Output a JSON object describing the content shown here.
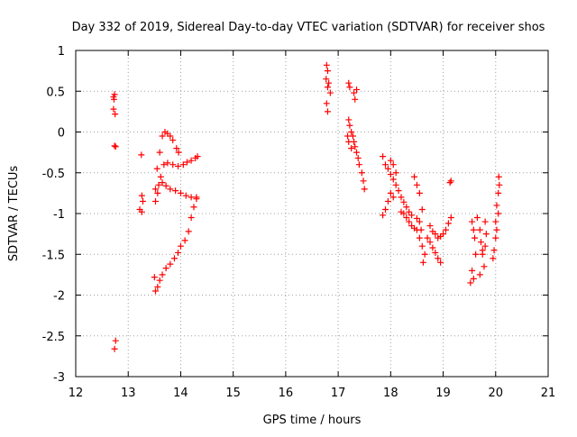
{
  "chart_data": {
    "type": "scatter",
    "title": "Day 332 of 2019, Sidereal Day-to-day VTEC variation (SDTVAR) for receiver shos",
    "xlabel": "GPS time / hours",
    "ylabel": "SDTVAR / TECUs",
    "xlim": [
      12,
      21
    ],
    "ylim": [
      -3,
      1
    ],
    "x_ticks": [
      "12",
      "13",
      "14",
      "15",
      "16",
      "17",
      "18",
      "19",
      "20",
      "21"
    ],
    "y_ticks": [
      "1",
      "0.5",
      "0",
      "-0.5",
      "-1",
      "-1.5",
      "-2",
      "-2.5",
      "-3"
    ],
    "grid": true,
    "legend": "none",
    "colors": {
      "series": "#ff0000",
      "grid": "#a0a0a0",
      "axis": "#000000"
    },
    "series": [
      {
        "name": "SDTVAR",
        "marker": "plus",
        "points": [
          [
            12.72,
            0.43
          ],
          [
            12.74,
            0.46
          ],
          [
            12.73,
            0.4
          ],
          [
            12.72,
            0.28
          ],
          [
            12.75,
            0.22
          ],
          [
            12.74,
            -0.17
          ],
          [
            12.76,
            -0.18
          ],
          [
            12.76,
            -2.56
          ],
          [
            12.74,
            -2.66
          ],
          [
            13.25,
            -0.28
          ],
          [
            13.26,
            -0.78
          ],
          [
            13.28,
            -0.85
          ],
          [
            13.22,
            -0.95
          ],
          [
            13.26,
            -0.98
          ],
          [
            13.55,
            -0.45
          ],
          [
            13.6,
            -0.25
          ],
          [
            13.65,
            -0.05
          ],
          [
            13.7,
            0.0
          ],
          [
            13.75,
            -0.02
          ],
          [
            13.8,
            -0.05
          ],
          [
            13.85,
            -0.1
          ],
          [
            13.92,
            -0.2
          ],
          [
            13.96,
            -0.25
          ],
          [
            13.52,
            -0.85
          ],
          [
            13.56,
            -0.75
          ],
          [
            13.62,
            -0.55
          ],
          [
            13.68,
            -0.4
          ],
          [
            13.75,
            -0.38
          ],
          [
            13.85,
            -0.4
          ],
          [
            13.95,
            -0.42
          ],
          [
            14.05,
            -0.4
          ],
          [
            14.12,
            -0.37
          ],
          [
            14.2,
            -0.35
          ],
          [
            14.28,
            -0.32
          ],
          [
            14.32,
            -0.3
          ],
          [
            13.52,
            -0.7
          ],
          [
            13.58,
            -0.65
          ],
          [
            13.65,
            -0.62
          ],
          [
            13.72,
            -0.66
          ],
          [
            13.8,
            -0.7
          ],
          [
            13.9,
            -0.72
          ],
          [
            14.0,
            -0.75
          ],
          [
            14.1,
            -0.78
          ],
          [
            14.2,
            -0.8
          ],
          [
            14.3,
            -0.8
          ],
          [
            13.52,
            -1.95
          ],
          [
            13.56,
            -1.9
          ],
          [
            13.6,
            -1.82
          ],
          [
            13.65,
            -1.75
          ],
          [
            13.72,
            -1.67
          ],
          [
            13.8,
            -1.62
          ],
          [
            13.88,
            -1.55
          ],
          [
            13.95,
            -1.48
          ],
          [
            14.0,
            -1.4
          ],
          [
            14.08,
            -1.33
          ],
          [
            14.15,
            -1.22
          ],
          [
            14.2,
            -1.05
          ],
          [
            14.25,
            -0.92
          ],
          [
            14.3,
            -0.82
          ],
          [
            13.5,
            -1.78
          ],
          [
            16.78,
            0.82
          ],
          [
            16.8,
            0.75
          ],
          [
            16.77,
            0.65
          ],
          [
            16.82,
            0.6
          ],
          [
            16.8,
            0.55
          ],
          [
            16.85,
            0.48
          ],
          [
            16.78,
            0.35
          ],
          [
            16.8,
            0.25
          ],
          [
            17.2,
            0.6
          ],
          [
            17.22,
            0.55
          ],
          [
            17.3,
            0.48
          ],
          [
            17.35,
            0.52
          ],
          [
            17.32,
            0.4
          ],
          [
            17.2,
            0.15
          ],
          [
            17.22,
            0.08
          ],
          [
            17.25,
            0.0
          ],
          [
            17.28,
            -0.05
          ],
          [
            17.3,
            -0.12
          ],
          [
            17.32,
            -0.18
          ],
          [
            17.35,
            -0.25
          ],
          [
            17.38,
            -0.32
          ],
          [
            17.4,
            -0.4
          ],
          [
            17.45,
            -0.5
          ],
          [
            17.48,
            -0.6
          ],
          [
            17.5,
            -0.7
          ],
          [
            17.18,
            -0.05
          ],
          [
            17.2,
            -0.12
          ],
          [
            17.25,
            -0.2
          ],
          [
            17.85,
            -0.3
          ],
          [
            17.9,
            -0.4
          ],
          [
            17.95,
            -0.45
          ],
          [
            18.0,
            -0.52
          ],
          [
            18.05,
            -0.58
          ],
          [
            18.1,
            -0.65
          ],
          [
            18.15,
            -0.72
          ],
          [
            18.2,
            -0.8
          ],
          [
            18.25,
            -0.86
          ],
          [
            18.3,
            -0.92
          ],
          [
            18.35,
            -0.98
          ],
          [
            18.4,
            -1.02
          ],
          [
            18.5,
            -1.06
          ],
          [
            18.0,
            -0.35
          ],
          [
            18.05,
            -0.4
          ],
          [
            18.1,
            -0.5
          ],
          [
            17.85,
            -1.02
          ],
          [
            17.9,
            -0.95
          ],
          [
            17.95,
            -0.85
          ],
          [
            18.0,
            -0.75
          ],
          [
            18.05,
            -0.8
          ],
          [
            18.2,
            -0.98
          ],
          [
            18.25,
            -1.0
          ],
          [
            18.3,
            -1.05
          ],
          [
            18.35,
            -1.1
          ],
          [
            18.4,
            -1.15
          ],
          [
            18.45,
            -1.18
          ],
          [
            18.45,
            -0.55
          ],
          [
            18.5,
            -0.65
          ],
          [
            18.55,
            -0.75
          ],
          [
            18.6,
            -0.95
          ],
          [
            18.55,
            -1.1
          ],
          [
            18.58,
            -1.2
          ],
          [
            18.5,
            -1.2
          ],
          [
            18.55,
            -1.3
          ],
          [
            18.6,
            -1.4
          ],
          [
            18.65,
            -1.5
          ],
          [
            18.62,
            -1.6
          ],
          [
            18.7,
            -1.3
          ],
          [
            18.75,
            -1.35
          ],
          [
            18.8,
            -1.42
          ],
          [
            18.85,
            -1.48
          ],
          [
            18.9,
            -1.55
          ],
          [
            18.95,
            -1.6
          ],
          [
            18.75,
            -1.15
          ],
          [
            18.8,
            -1.22
          ],
          [
            18.85,
            -1.25
          ],
          [
            18.9,
            -1.3
          ],
          [
            18.95,
            -1.28
          ],
          [
            19.0,
            -1.25
          ],
          [
            19.05,
            -1.2
          ],
          [
            19.1,
            -1.12
          ],
          [
            19.15,
            -1.05
          ],
          [
            19.13,
            -0.62
          ],
          [
            19.15,
            -0.6
          ],
          [
            19.55,
            -1.1
          ],
          [
            19.58,
            -1.2
          ],
          [
            19.6,
            -1.3
          ],
          [
            19.62,
            -1.5
          ],
          [
            19.55,
            -1.7
          ],
          [
            19.58,
            -1.8
          ],
          [
            19.52,
            -1.85
          ],
          [
            19.65,
            -1.05
          ],
          [
            19.7,
            -1.2
          ],
          [
            19.72,
            -1.35
          ],
          [
            19.75,
            -1.5
          ],
          [
            19.78,
            -1.65
          ],
          [
            19.7,
            -1.75
          ],
          [
            19.8,
            -1.1
          ],
          [
            19.82,
            -1.25
          ],
          [
            19.8,
            -1.4
          ],
          [
            19.75,
            -1.45
          ],
          [
            19.95,
            -1.55
          ],
          [
            19.97,
            -1.45
          ],
          [
            20.0,
            -1.3
          ],
          [
            20.02,
            -1.2
          ],
          [
            20.0,
            -1.1
          ],
          [
            20.05,
            -1.0
          ],
          [
            20.02,
            -0.9
          ],
          [
            20.05,
            -0.75
          ],
          [
            20.07,
            -0.65
          ],
          [
            20.06,
            -0.55
          ]
        ]
      }
    ]
  }
}
